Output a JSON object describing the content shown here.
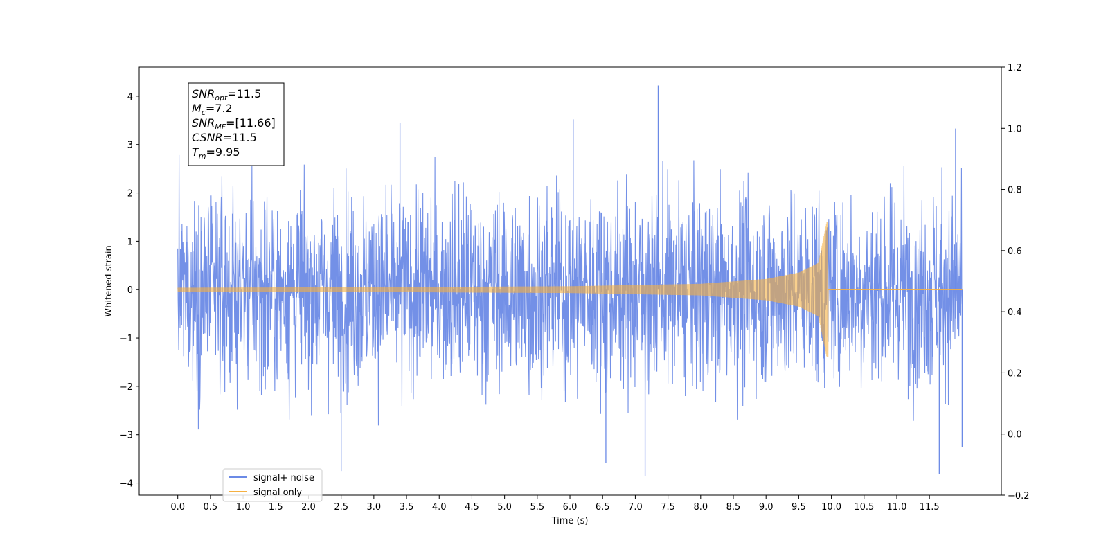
{
  "chart_data": {
    "type": "line",
    "xlabel": "Time (s)",
    "ylabel": "Whitened strain",
    "xlim": [
      -0.59,
      12.6
    ],
    "ylim": [
      -4.25,
      4.6
    ],
    "ylim_right": [
      -0.2,
      1.2
    ],
    "x_ticks": [
      "0.0",
      "0.5",
      "1.0",
      "1.5",
      "2.0",
      "2.5",
      "3.0",
      "3.5",
      "4.0",
      "4.5",
      "5.0",
      "5.5",
      "6.0",
      "6.5",
      "7.0",
      "7.5",
      "8.0",
      "8.5",
      "9.0",
      "9.5",
      "10.0",
      "10.5",
      "11.0",
      "11.5"
    ],
    "y_ticks": [
      "4",
      "3",
      "2",
      "1",
      "0",
      "−1",
      "−2",
      "−3",
      "−4"
    ],
    "y_ticks_right": [
      "1.2",
      "1.0",
      "0.8",
      "0.6",
      "0.4",
      "0.2",
      "0.0",
      "−0.2"
    ],
    "grid": false,
    "legend_placement": "bottom-left",
    "series": [
      {
        "name": "signal+ noise",
        "color": "#6b8ae6",
        "description": "whitened strain, approx. unit-variance noise from 0.0 to 12.0 s with chirp added",
        "x_range": [
          0.0,
          12.0
        ],
        "noise_sigma": 1.0,
        "notable_peaks": [
          {
            "x": 7.35,
            "y": 4.22
          },
          {
            "x": 6.05,
            "y": 3.52
          },
          {
            "x": 3.4,
            "y": 3.45
          },
          {
            "x": 11.9,
            "y": 3.33
          },
          {
            "x": 2.5,
            "y": -3.75
          },
          {
            "x": 7.15,
            "y": -3.85
          },
          {
            "x": 11.65,
            "y": -3.82
          },
          {
            "x": 6.55,
            "y": -3.58
          },
          {
            "x": 12.0,
            "y": -3.25
          }
        ]
      },
      {
        "name": "signal only",
        "color": "#f5b041",
        "description": "chirp signal growing in amplitude until merger at about 9.95 s, zero afterwards",
        "x_range": [
          0.0,
          12.0
        ],
        "envelope": [
          {
            "x": 0.0,
            "amp": 0.04
          },
          {
            "x": 3.0,
            "amp": 0.05
          },
          {
            "x": 6.0,
            "amp": 0.07
          },
          {
            "x": 8.0,
            "amp": 0.12
          },
          {
            "x": 9.0,
            "amp": 0.22
          },
          {
            "x": 9.5,
            "amp": 0.35
          },
          {
            "x": 9.8,
            "amp": 0.55
          },
          {
            "x": 9.93,
            "amp": 1.4
          },
          {
            "x": 9.95,
            "amp": 0.0
          },
          {
            "x": 12.0,
            "amp": 0.0
          }
        ]
      }
    ],
    "annotation": [
      {
        "base": "SNR",
        "sub": "opt",
        "value": "=11.5"
      },
      {
        "base": "M",
        "sub": "c",
        "value": "=7.2"
      },
      {
        "base": "SNR",
        "sub": "MF",
        "value": "=[11.66]"
      },
      {
        "base": "CSNR",
        "sub": "",
        "value": "=11.5"
      },
      {
        "base": "T",
        "sub": "m",
        "value": "=9.95"
      }
    ]
  }
}
